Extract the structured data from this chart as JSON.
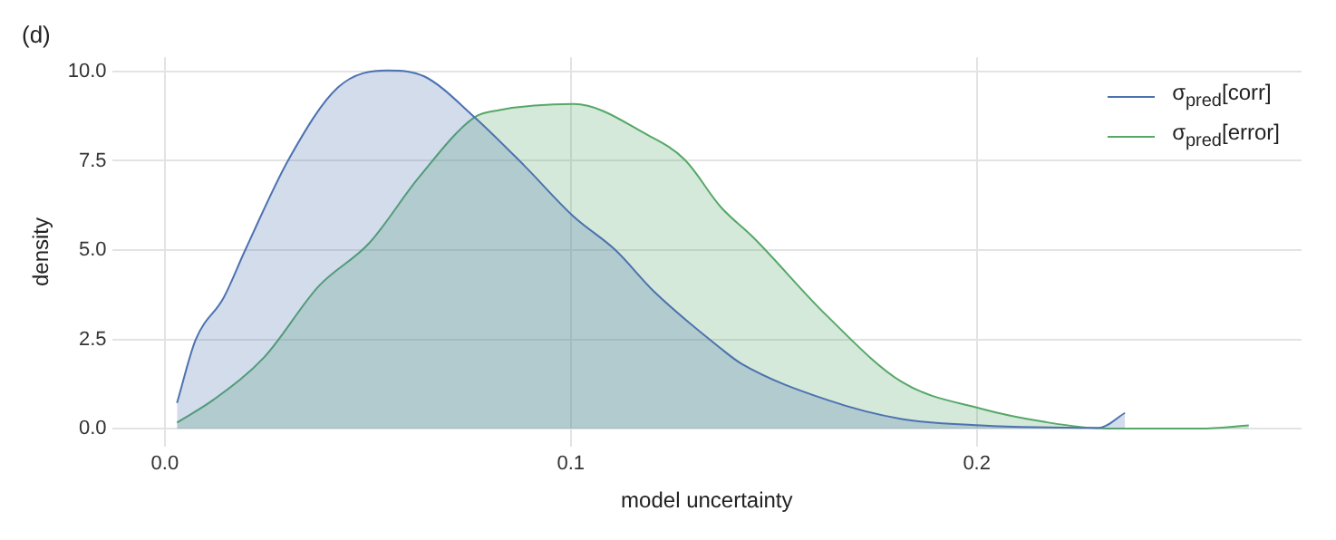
{
  "chart_data": {
    "type": "area",
    "title": "(d)",
    "xlabel": "model uncertainty",
    "ylabel": "density",
    "xlim": [
      -0.013,
      0.28
    ],
    "ylim": [
      -0.5,
      10.4
    ],
    "xticks": [
      {
        "value": 0,
        "label": "0.0"
      },
      0.1,
      0.2
    ],
    "yticks": [
      {
        "value": 0,
        "label": "0.0"
      },
      2.5,
      {
        "value": 5,
        "label": "5.0"
      },
      7.5,
      {
        "value": 10,
        "label": "10.0"
      }
    ],
    "grid": true,
    "legend": "top right",
    "marker": "none",
    "line_style": "solid",
    "series": [
      {
        "name": "σ$_{pred}$[corr]",
        "color": "#4c72b0",
        "x": [
          0.003,
          0.0076,
          0.0145,
          0.0198,
          0.0305,
          0.0427,
          0.0549,
          0.064,
          0.0763,
          0.0885,
          0.1007,
          0.111,
          0.1205,
          0.137,
          0.142,
          0.163,
          0.1815,
          0.201,
          0.23,
          0.2365
        ],
        "values": [
          0.72,
          2.49,
          3.67,
          5.0,
          7.54,
          9.56,
          10.03,
          9.86,
          8.72,
          7.37,
          5.94,
          5.0,
          3.84,
          2.24,
          1.82,
          0.81,
          0.27,
          0.09,
          0.02,
          0.44
        ]
      },
      {
        "name": "σ$_{pred}$[error]",
        "color": "#55a868",
        "x": [
          0.003,
          0.012,
          0.0244,
          0.038,
          0.0503,
          0.0626,
          0.0763,
          0.0824,
          0.1007,
          0.119,
          0.128,
          0.137,
          0.145,
          0.163,
          0.1815,
          0.201,
          0.2166,
          0.232,
          0.255,
          0.267
        ],
        "values": [
          0.17,
          0.81,
          1.99,
          4.0,
          5.19,
          7.04,
          8.72,
          8.92,
          9.09,
          8.22,
          7.54,
          6.2,
          5.35,
          3.17,
          1.31,
          0.56,
          0.19,
          0.0,
          0.0,
          0.09
        ]
      }
    ]
  }
}
